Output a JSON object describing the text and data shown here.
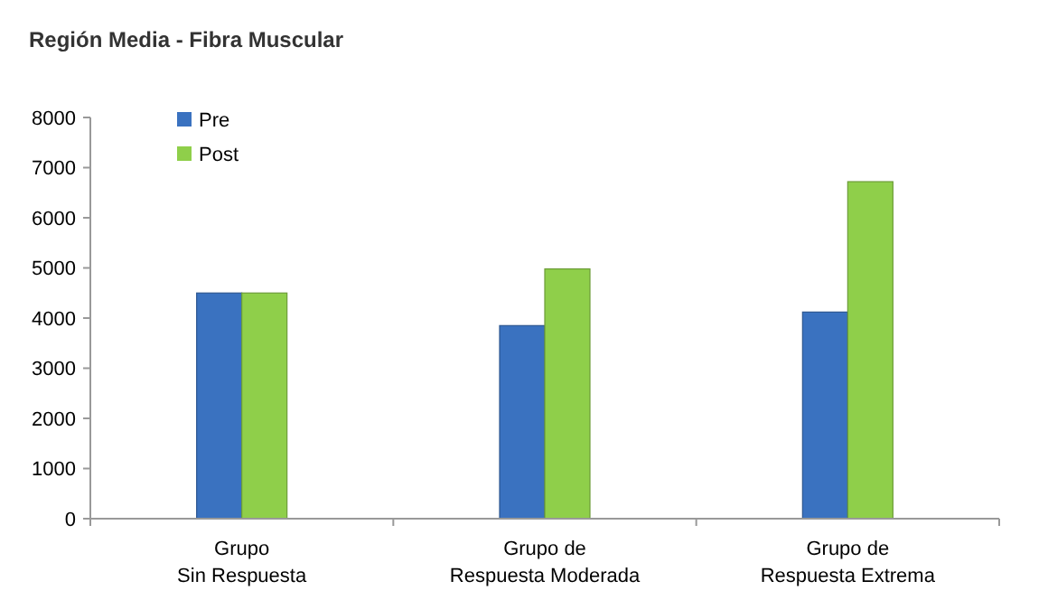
{
  "chart_data": {
    "type": "bar",
    "title": "Región Media - Fibra Muscular",
    "categories": [
      "Grupo\nSin Respuesta",
      "Grupo de\nRespuesta Moderada",
      "Grupo de\nRespuesta Extrema"
    ],
    "series": [
      {
        "name": "Pre",
        "color": "#3a72c0",
        "values": [
          4500,
          3850,
          4120
        ]
      },
      {
        "name": "Post",
        "color": "#8fcf4a",
        "values": [
          4500,
          4980,
          6720
        ]
      }
    ],
    "ylim": [
      0,
      8000
    ],
    "yticks": [
      0,
      1000,
      2000,
      3000,
      4000,
      5000,
      6000,
      7000,
      8000
    ],
    "grid": false,
    "legend": "top left"
  }
}
